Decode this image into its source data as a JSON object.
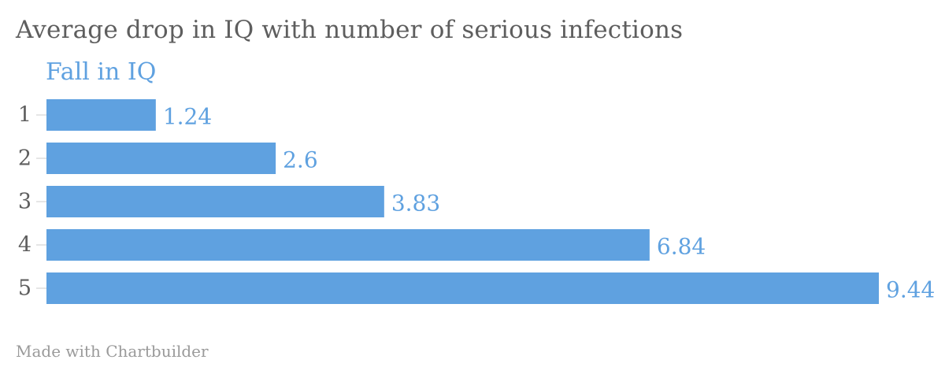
{
  "chart_data": {
    "type": "bar",
    "orientation": "horizontal",
    "title": "Average drop in IQ with number of serious infections",
    "categories": [
      "1",
      "2",
      "3",
      "4",
      "5"
    ],
    "series": [
      {
        "name": "Fall in IQ",
        "values": [
          1.24,
          2.6,
          3.83,
          6.84,
          9.44
        ],
        "color": "#5fa1e0"
      }
    ],
    "value_labels": [
      "1.24",
      "2.6",
      "3.83",
      "6.84",
      "9.44"
    ],
    "xlim": [
      0,
      9.44
    ],
    "grid": false,
    "legend": "top-left"
  },
  "footer": {
    "credit": "Made with Chartbuilder"
  },
  "colors": {
    "bar": "#5fa1e0",
    "title": "#5e5e5e",
    "axis_text": "#5e5e5e",
    "tick": "#cccccc",
    "credit": "#9a9a9a"
  }
}
